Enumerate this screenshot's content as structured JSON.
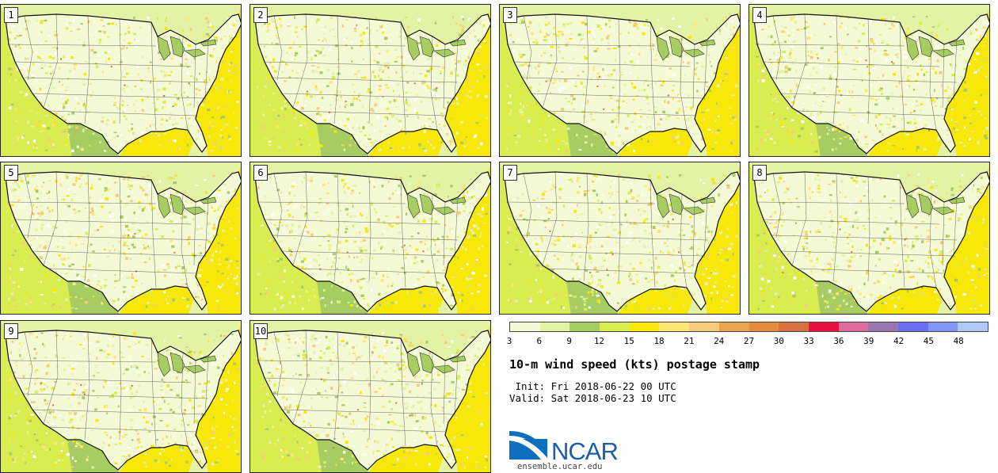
{
  "panels": [
    {
      "label": "1"
    },
    {
      "label": "2"
    },
    {
      "label": "3"
    },
    {
      "label": "4"
    },
    {
      "label": "5"
    },
    {
      "label": "6"
    },
    {
      "label": "7"
    },
    {
      "label": "8"
    },
    {
      "label": "9"
    },
    {
      "label": "10"
    }
  ],
  "colorbar": {
    "colors": [
      "#f4f9d6",
      "#e4f2a6",
      "#a6cc62",
      "#d9ec50",
      "#f7e80a",
      "#fbe772",
      "#f6cb7c",
      "#eaa250",
      "#e38d3c",
      "#d97040",
      "#e81040",
      "#e06aa0",
      "#9a76b0",
      "#6a6ef0",
      "#8296f6",
      "#b0c8f8"
    ],
    "ticks": [
      "3",
      "6",
      "9",
      "12",
      "15",
      "18",
      "21",
      "24",
      "27",
      "30",
      "33",
      "36",
      "39",
      "42",
      "45",
      "48"
    ]
  },
  "title": "10-m wind speed (kts) postage stamp",
  "init": " Init: Fri 2018-06-22 00 UTC",
  "valid": "Valid: Sat 2018-06-23 10 UTC",
  "logo": {
    "text": "NCAR",
    "url": "ensemble.ucar.edu",
    "color": "#1a5fa8"
  }
}
